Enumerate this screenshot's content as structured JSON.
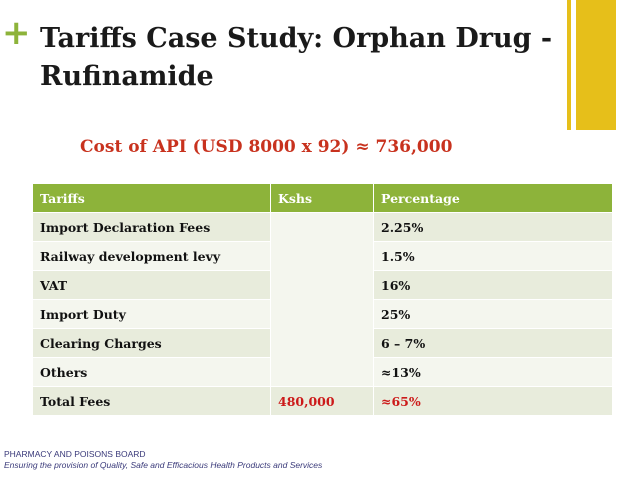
{
  "slide": {
    "plus_symbol": "+",
    "title": "Tariffs Case Study: Orphan Drug - Rufinamide",
    "cost_prefix": "Cost of ",
    "cost_highlight": "API",
    "cost_suffix": " (USD 8000 x 92) ≈ 736,000"
  },
  "table": {
    "headers": [
      "Tariffs",
      "Kshs",
      "Percentage"
    ],
    "rows": [
      {
        "tariff": "Import Declaration Fees",
        "kshs": "",
        "percentage": "2.25%"
      },
      {
        "tariff": "Railway development levy",
        "kshs": "",
        "percentage": "1.5%"
      },
      {
        "tariff": "VAT",
        "kshs": "",
        "percentage": "16%"
      },
      {
        "tariff": "Import Duty",
        "kshs": "",
        "percentage": "25%"
      },
      {
        "tariff": "Clearing Charges",
        "kshs": "",
        "percentage": "6 – 7%"
      },
      {
        "tariff": "Others",
        "kshs": "",
        "percentage": "≈13%"
      }
    ],
    "total": {
      "tariff": "Total Fees",
      "kshs": "480,000",
      "percentage": "≈65%"
    }
  },
  "footer": {
    "org": "PHARMACY AND POISONS BOARD",
    "tagline": "Ensuring the provision of Quality, Safe and Efficacious Health Products and Services"
  },
  "colors": {
    "accent_green": "#8db33a",
    "accent_yellow": "#e6bf1a",
    "highlight_red": "#cc1a1a"
  }
}
